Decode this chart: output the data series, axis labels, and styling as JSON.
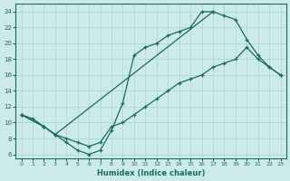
{
  "xlabel": "Humidex (Indice chaleur)",
  "bg_color": "#cceae8",
  "line_color": "#1a6b5e",
  "grid_color": "#aad4d0",
  "xlim": [
    -0.5,
    23.5
  ],
  "ylim": [
    5.5,
    25.0
  ],
  "xticks": [
    0,
    1,
    2,
    3,
    4,
    5,
    6,
    7,
    8,
    9,
    10,
    11,
    12,
    13,
    14,
    15,
    16,
    17,
    18,
    19,
    20,
    21,
    22,
    23
  ],
  "yticks": [
    6,
    8,
    10,
    12,
    14,
    16,
    18,
    20,
    22,
    24
  ],
  "line1_x": [
    0,
    1,
    2,
    3,
    4,
    5,
    6,
    7,
    8,
    9,
    10,
    11,
    12,
    13,
    14,
    15,
    16,
    17
  ],
  "line1_y": [
    11,
    10.5,
    9.5,
    8.5,
    7.5,
    6.5,
    6.0,
    6.5,
    9.0,
    12.5,
    18.5,
    19.5,
    20.0,
    21.0,
    21.5,
    22.0,
    24.0,
    24.0
  ],
  "line2_x": [
    0,
    2,
    3,
    17,
    18,
    19,
    20,
    21,
    22,
    23
  ],
  "line2_y": [
    11,
    9.5,
    8.5,
    24.0,
    23.5,
    23.0,
    20.5,
    18.5,
    17.0,
    16.0
  ],
  "line3_x": [
    0,
    2,
    3,
    4,
    5,
    6,
    7,
    8,
    9,
    10,
    11,
    12,
    13,
    14,
    15,
    16,
    17,
    18,
    19,
    20,
    21,
    22,
    23
  ],
  "line3_y": [
    11,
    9.5,
    8.5,
    8.0,
    7.5,
    7.0,
    7.5,
    9.5,
    10.0,
    11.0,
    12.0,
    13.0,
    14.0,
    15.0,
    15.5,
    16.0,
    17.0,
    17.5,
    18.0,
    19.5,
    18.0,
    17.0,
    16.0
  ]
}
